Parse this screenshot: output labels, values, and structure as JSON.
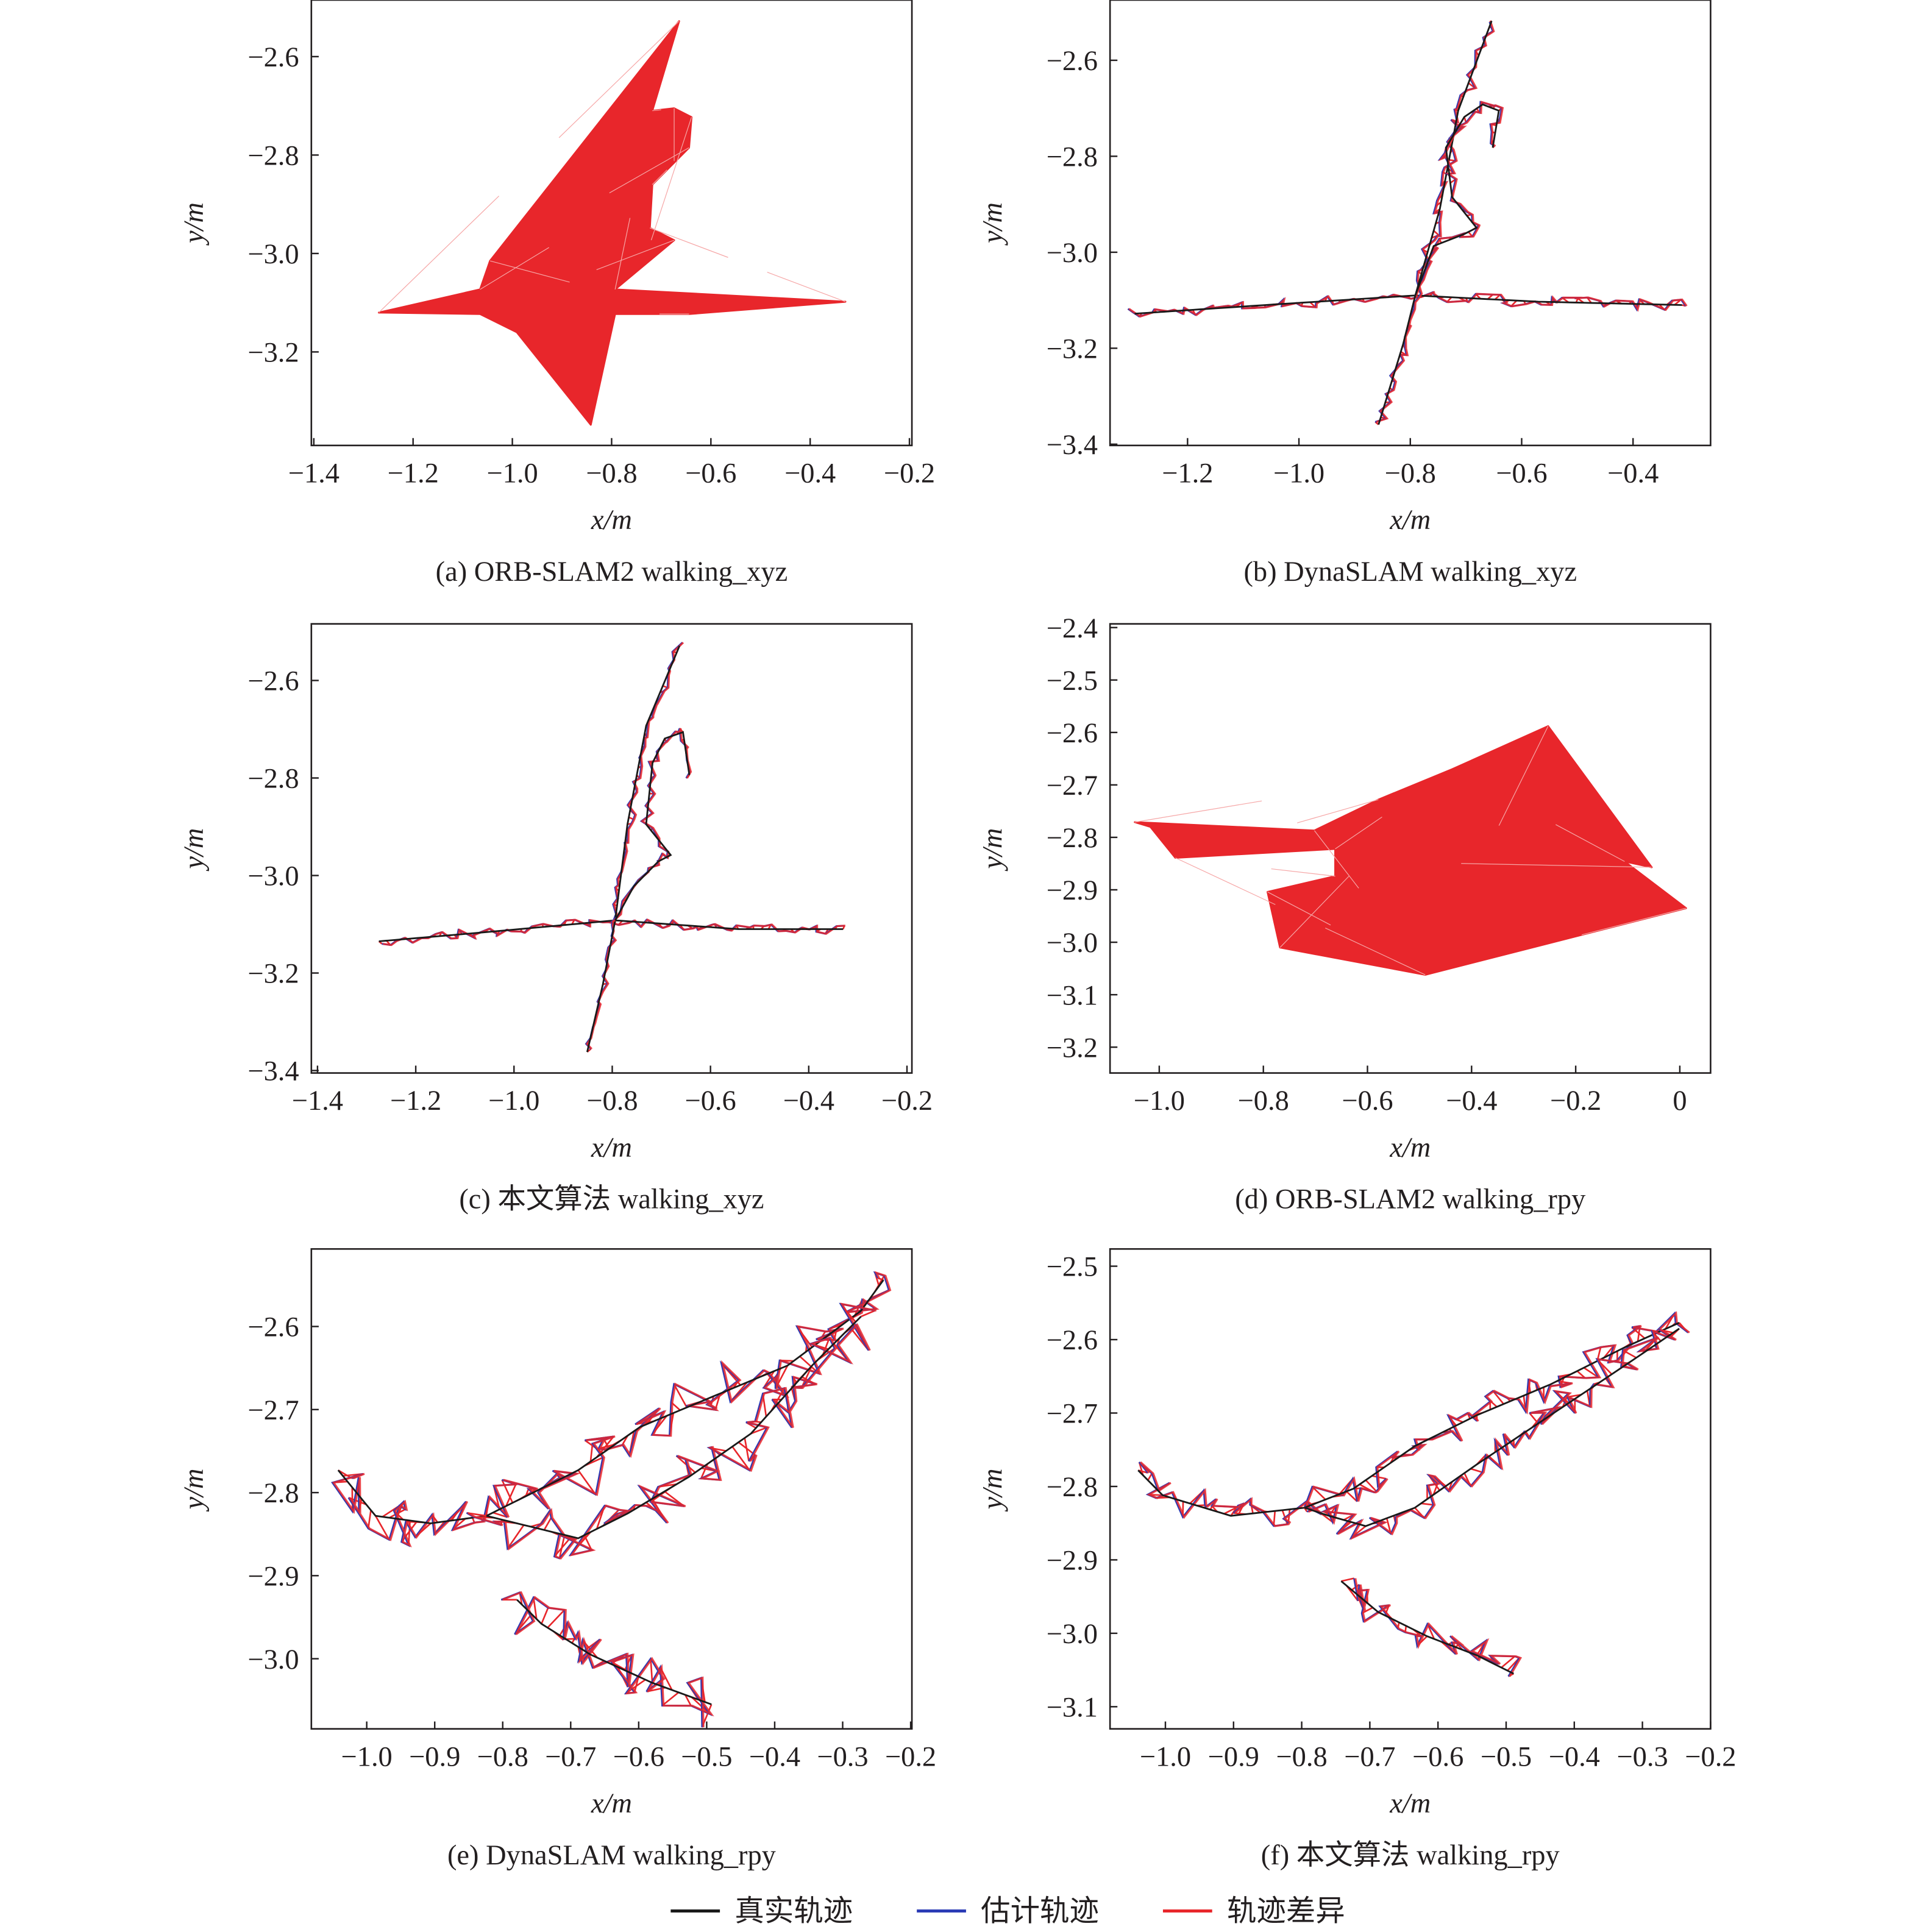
{
  "legend": [
    {
      "label": "真实轨迹",
      "color": "#1a1a1a"
    },
    {
      "label": "估计轨迹",
      "color": "#2b3bb5"
    },
    {
      "label": "轨迹差异",
      "color": "#e8262b"
    }
  ],
  "chart_data": [
    {
      "id": "a",
      "type": "line",
      "caption": "(a) ORB-SLAM2 walking_xyz",
      "xlabel": "x/m",
      "ylabel": "y/m",
      "xticks": [
        -1.4,
        -1.2,
        -1.0,
        -0.8,
        -0.6,
        -0.4,
        -0.2
      ],
      "yticks": [
        -2.6,
        -2.8,
        -3.0,
        -3.2
      ],
      "xlim": [
        -1.4,
        -0.2
      ],
      "ylim": [
        -3.4,
        -2.5
      ],
      "style": "filled",
      "difference_region": [
        [
          -1.269,
          -3.12
        ],
        [
          -1.065,
          -3.073
        ],
        [
          -1.045,
          -3.015
        ],
        [
          -0.664,
          -2.528
        ],
        [
          -0.718,
          -2.71
        ],
        [
          -0.674,
          -2.705
        ],
        [
          -0.639,
          -2.723
        ],
        [
          -0.644,
          -2.785
        ],
        [
          -0.718,
          -2.86
        ],
        [
          -0.723,
          -2.948
        ],
        [
          -0.674,
          -2.973
        ],
        [
          -0.793,
          -3.073
        ],
        [
          -0.329,
          -3.098
        ],
        [
          -0.644,
          -3.123
        ],
        [
          -0.793,
          -3.123
        ],
        [
          -0.842,
          -3.348
        ],
        [
          -0.991,
          -3.16
        ],
        [
          -1.065,
          -3.123
        ]
      ]
    },
    {
      "id": "b",
      "type": "line",
      "caption": "(b) DynaSLAM walking_xyz",
      "xlabel": "x/m",
      "ylabel": "y/m",
      "xticks": [
        -1.2,
        -1.0,
        -0.8,
        -0.6,
        -0.4
      ],
      "yticks": [
        -2.6,
        -2.8,
        -3.0,
        -3.2,
        -3.4
      ],
      "xlim": [
        -1.33,
        -0.28
      ],
      "ylim": [
        -3.4,
        -2.48
      ],
      "style": "traj",
      "jitter": 0.012,
      "ground_truth": [
        [
          [
            -1.295,
            -3.128
          ],
          [
            -1.034,
            -3.108
          ],
          [
            -0.791,
            -3.09
          ],
          [
            -0.57,
            -3.103
          ],
          [
            -0.312,
            -3.11
          ]
        ],
        [
          [
            -0.857,
            -3.359
          ],
          [
            -0.813,
            -3.192
          ],
          [
            -0.791,
            -3.09
          ],
          [
            -0.747,
            -2.91
          ],
          [
            -0.714,
            -2.705
          ],
          [
            -0.654,
            -2.518
          ]
        ],
        [
          [
            -0.791,
            -3.09
          ],
          [
            -0.758,
            -2.987
          ],
          [
            -0.703,
            -2.962
          ],
          [
            -0.681,
            -2.949
          ],
          [
            -0.725,
            -2.885
          ],
          [
            -0.736,
            -2.782
          ],
          [
            -0.703,
            -2.718
          ],
          [
            -0.67,
            -2.692
          ],
          [
            -0.641,
            -2.705
          ],
          [
            -0.652,
            -2.782
          ]
        ]
      ]
    },
    {
      "id": "c",
      "type": "line",
      "caption": "(c) 本文算法 walking_xyz",
      "xlabel": "x/m",
      "ylabel": "y/m",
      "xticks": [
        -1.4,
        -1.2,
        -1.0,
        -0.8,
        -0.6,
        -0.4,
        -0.2
      ],
      "yticks": [
        -2.6,
        -2.8,
        -3.0,
        -3.2,
        -3.4
      ],
      "xlim": [
        -1.4,
        -0.2
      ],
      "ylim": [
        -3.4,
        -2.5
      ],
      "style": "traj",
      "jitter": 0.01,
      "ground_truth": [
        [
          [
            -1.275,
            -3.135
          ],
          [
            -1.044,
            -3.115
          ],
          [
            -0.794,
            -3.092
          ],
          [
            -0.543,
            -3.11
          ],
          [
            -0.33,
            -3.11
          ]
        ],
        [
          [
            -0.851,
            -3.362
          ],
          [
            -0.819,
            -3.223
          ],
          [
            -0.794,
            -3.092
          ],
          [
            -0.769,
            -2.895
          ],
          [
            -0.731,
            -2.693
          ],
          [
            -0.663,
            -2.529
          ]
        ],
        [
          [
            -0.794,
            -3.092
          ],
          [
            -0.756,
            -3.022
          ],
          [
            -0.706,
            -2.971
          ],
          [
            -0.681,
            -2.958
          ],
          [
            -0.731,
            -2.895
          ],
          [
            -0.718,
            -2.769
          ],
          [
            -0.693,
            -2.719
          ],
          [
            -0.656,
            -2.706
          ],
          [
            -0.643,
            -2.794
          ]
        ]
      ]
    },
    {
      "id": "d",
      "type": "line",
      "caption": "(d) ORB-SLAM2 walking_rpy",
      "xlabel": "x/m",
      "ylabel": "y/m",
      "xticks": [
        -1.0,
        -0.8,
        -0.6,
        -0.4,
        -0.2,
        0
      ],
      "yticks": [
        -2.4,
        -2.5,
        -2.6,
        -2.7,
        -2.8,
        -2.9,
        -3.0,
        -3.1,
        -3.2
      ],
      "xlim": [
        -1.1,
        0.06
      ],
      "ylim": [
        -3.25,
        -2.4
      ],
      "style": "filled",
      "difference_region": [
        [
          -1.047,
          -2.771
        ],
        [
          -0.702,
          -2.787
        ],
        [
          -0.579,
          -2.728
        ],
        [
          -0.437,
          -2.67
        ],
        [
          -0.253,
          -2.588
        ],
        [
          -0.054,
          -2.857
        ],
        [
          -0.106,
          -2.846
        ],
        [
          0.012,
          -2.935
        ],
        [
          -0.489,
          -3.062
        ],
        [
          -0.768,
          -3.01
        ],
        [
          -0.792,
          -2.904
        ],
        [
          -0.662,
          -2.874
        ],
        [
          -0.662,
          -2.822
        ],
        [
          -0.969,
          -2.839
        ],
        [
          -1.017,
          -2.78
        ]
      ]
    },
    {
      "id": "e",
      "type": "line",
      "caption": "(e) DynaSLAM walking_rpy",
      "xlabel": "x/m",
      "ylabel": "y/m",
      "xticks": [
        -1.0,
        -0.9,
        -0.8,
        -0.7,
        -0.6,
        -0.5,
        -0.4,
        -0.3,
        -0.2
      ],
      "yticks": [
        -2.6,
        -2.7,
        -2.8,
        -2.9,
        -3.0
      ],
      "xlim": [
        -1.08,
        -0.2
      ],
      "ylim": [
        -3.08,
        -2.5
      ],
      "style": "traj",
      "jitter": 0.03,
      "ground_truth": [
        [
          [
            -1.042,
            -2.773
          ],
          [
            -0.987,
            -2.828
          ],
          [
            -0.906,
            -2.837
          ],
          [
            -0.824,
            -2.828
          ],
          [
            -0.689,
            -2.773
          ],
          [
            -0.598,
            -2.721
          ],
          [
            -0.49,
            -2.684
          ],
          [
            -0.381,
            -2.647
          ],
          [
            -0.273,
            -2.581
          ],
          [
            -0.24,
            -2.544
          ]
        ],
        [
          [
            -0.824,
            -2.828
          ],
          [
            -0.779,
            -2.837
          ],
          [
            -0.689,
            -2.855
          ],
          [
            -0.616,
            -2.825
          ],
          [
            -0.526,
            -2.781
          ],
          [
            -0.435,
            -2.729
          ],
          [
            -0.345,
            -2.647
          ],
          [
            -0.273,
            -2.588
          ]
        ],
        [
          [
            -0.779,
            -2.929
          ],
          [
            -0.743,
            -2.958
          ],
          [
            -0.671,
            -2.995
          ],
          [
            -0.58,
            -3.029
          ],
          [
            -0.493,
            -3.055
          ]
        ]
      ]
    },
    {
      "id": "f",
      "type": "line",
      "caption": "(f) 本文算法 walking_rpy",
      "xlabel": "x/m",
      "ylabel": "y/m",
      "xticks": [
        -1.0,
        -0.9,
        -0.8,
        -0.7,
        -0.6,
        -0.5,
        -0.4,
        -0.3,
        -0.2
      ],
      "yticks": [
        -2.5,
        -2.6,
        -2.7,
        -2.8,
        -2.9,
        -3.0,
        -3.1
      ],
      "xlim": [
        -1.08,
        -0.2
      ],
      "ylim": [
        -3.13,
        -2.47
      ],
      "style": "traj",
      "jitter": 0.022,
      "ground_truth": [
        [
          [
            -1.04,
            -2.778
          ],
          [
            -1.004,
            -2.812
          ],
          [
            -0.904,
            -2.84
          ],
          [
            -0.796,
            -2.829
          ],
          [
            -0.724,
            -2.803
          ],
          [
            -0.634,
            -2.745
          ],
          [
            -0.543,
            -2.703
          ],
          [
            -0.435,
            -2.661
          ],
          [
            -0.327,
            -2.611
          ],
          [
            -0.246,
            -2.577
          ]
        ],
        [
          [
            -0.796,
            -2.829
          ],
          [
            -0.76,
            -2.84
          ],
          [
            -0.706,
            -2.854
          ],
          [
            -0.634,
            -2.829
          ],
          [
            -0.543,
            -2.77
          ],
          [
            -0.435,
            -2.703
          ],
          [
            -0.327,
            -2.636
          ],
          [
            -0.246,
            -2.585
          ]
        ],
        [
          [
            -0.742,
            -2.929
          ],
          [
            -0.688,
            -2.971
          ],
          [
            -0.616,
            -3.004
          ],
          [
            -0.543,
            -3.03
          ],
          [
            -0.489,
            -3.055
          ]
        ]
      ]
    }
  ]
}
